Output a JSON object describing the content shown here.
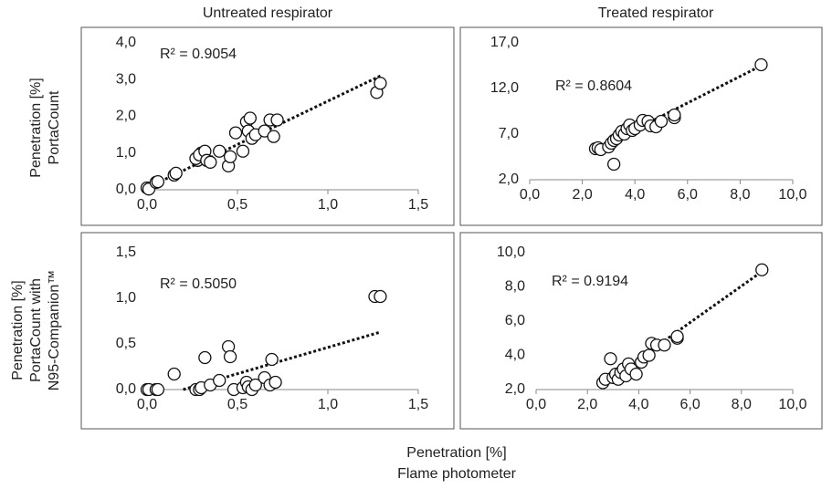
{
  "column_titles": [
    "Untreated respirator",
    "Treated respirator"
  ],
  "row_labels": [
    [
      "Penetration [%]",
      "PortaCount"
    ],
    [
      "Penetration [%]",
      "PortaCount with",
      "N95-Companion™"
    ]
  ],
  "x_label": [
    "Penetration [%]",
    "Flame photometer"
  ],
  "chart_data": [
    {
      "type": "scatter",
      "annotation": "R² = 0.9054",
      "x": [
        0,
        0.01,
        0.05,
        0.06,
        0.15,
        0.16,
        0.28,
        0.27,
        0.3,
        0.29,
        0.32,
        0.33,
        0.35,
        0.4,
        0.45,
        0.46,
        0.49,
        0.53,
        0.55,
        0.57,
        0.56,
        0.58,
        0.6,
        0.65,
        0.68,
        0.7,
        0.72,
        1.27,
        1.29
      ],
      "values": [
        0.05,
        0.02,
        0.2,
        0.22,
        0.4,
        0.45,
        0.8,
        0.85,
        1.0,
        0.95,
        1.05,
        0.8,
        0.75,
        1.05,
        0.65,
        0.9,
        1.55,
        1.05,
        1.85,
        1.95,
        1.6,
        1.4,
        1.5,
        1.6,
        1.9,
        1.45,
        1.9,
        2.65,
        2.9
      ],
      "trendline": {
        "x": [
          0,
          1.29
        ],
        "values": [
          0.05,
          3.1
        ]
      },
      "xlim": [
        0,
        1.5
      ],
      "xticks": [
        {
          "value": 0,
          "label": "0,0"
        },
        {
          "value": 0.5,
          "label": "0,5"
        },
        {
          "value": 1,
          "label": "1,0"
        },
        {
          "value": 1.5,
          "label": "1,5"
        }
      ],
      "ylim": [
        0,
        4
      ],
      "yticks": [
        {
          "value": 0,
          "label": "0,0"
        },
        {
          "value": 1,
          "label": "1,0"
        },
        {
          "value": 2,
          "label": "2,0"
        },
        {
          "value": 3,
          "label": "3,0"
        },
        {
          "value": 4,
          "label": "4,0"
        }
      ]
    },
    {
      "type": "scatter",
      "annotation": "R² = 0.8604",
      "x": [
        2.5,
        2.6,
        2.7,
        3.0,
        3.1,
        3.2,
        3.2,
        3.3,
        3.4,
        3.5,
        3.6,
        3.7,
        3.8,
        3.9,
        4.0,
        4.2,
        4.3,
        4.5,
        4.6,
        4.8,
        5.0,
        5.5,
        5.5,
        8.8
      ],
      "values": [
        5.4,
        5.5,
        5.3,
        5.6,
        6.0,
        3.7,
        6.3,
        6.5,
        6.9,
        7.3,
        7.0,
        7.6,
        8.0,
        7.4,
        7.6,
        8.0,
        8.5,
        8.4,
        7.9,
        7.8,
        8.4,
        8.8,
        9.1,
        14.6
      ],
      "trendline": {
        "x": [
          2.5,
          8.8
        ],
        "values": [
          5.3,
          14.5
        ]
      },
      "xlim": [
        0,
        10
      ],
      "xticks": [
        {
          "value": 0,
          "label": "0,0"
        },
        {
          "value": 2,
          "label": "2,0"
        },
        {
          "value": 4,
          "label": "4,0"
        },
        {
          "value": 6,
          "label": "6,0"
        },
        {
          "value": 8,
          "label": "8,0"
        },
        {
          "value": 10,
          "label": "10,0"
        }
      ],
      "ylim": [
        2,
        17
      ],
      "yticks": [
        {
          "value": 2,
          "label": "2,0"
        },
        {
          "value": 7,
          "label": "7,0"
        },
        {
          "value": 12,
          "label": "12,0"
        },
        {
          "value": 17,
          "label": "17,0"
        }
      ]
    },
    {
      "type": "scatter",
      "annotation": "R² = 0.5050",
      "x": [
        0,
        0.01,
        0.05,
        0.06,
        0.15,
        0.27,
        0.29,
        0.3,
        0.32,
        0.35,
        0.4,
        0.45,
        0.46,
        0.48,
        0.53,
        0.55,
        0.56,
        0.58,
        0.6,
        0.65,
        0.68,
        0.69,
        0.71,
        1.26,
        1.29
      ],
      "values": [
        0,
        0,
        0,
        0,
        0.17,
        0,
        0,
        0.02,
        0.35,
        0.05,
        0.1,
        0.47,
        0.36,
        0,
        0.02,
        0.08,
        0.03,
        0,
        0.05,
        0.13,
        0.05,
        0.33,
        0.08,
        1.02,
        1.02
      ],
      "trendline": {
        "x": [
          0.2,
          1.29
        ],
        "values": [
          0,
          0.63
        ]
      },
      "xlim": [
        0,
        1.5
      ],
      "xticks": [
        {
          "value": 0,
          "label": "0,0"
        },
        {
          "value": 0.5,
          "label": "0,5"
        },
        {
          "value": 1,
          "label": "1,0"
        },
        {
          "value": 1.5,
          "label": "1,5"
        }
      ],
      "ylim": [
        0,
        1.5
      ],
      "yticks": [
        {
          "value": 0,
          "label": "0,0"
        },
        {
          "value": 0.5,
          "label": "0,5"
        },
        {
          "value": 1,
          "label": "1,0"
        },
        {
          "value": 1.5,
          "label": "1,5"
        }
      ]
    },
    {
      "type": "scatter",
      "annotation": "R² = 0.9194",
      "x": [
        2.6,
        2.7,
        2.9,
        3.0,
        3.1,
        3.2,
        3.3,
        3.4,
        3.5,
        3.6,
        3.7,
        3.9,
        4.1,
        4.2,
        4.4,
        4.5,
        4.7,
        5.0,
        5.5,
        5.5,
        8.8
      ],
      "values": [
        2.4,
        2.6,
        3.8,
        2.7,
        2.9,
        2.6,
        3.0,
        3.2,
        2.8,
        3.5,
        3.2,
        2.9,
        3.6,
        3.9,
        4.0,
        4.7,
        4.6,
        4.6,
        5.0,
        5.1,
        9.0
      ],
      "trendline": {
        "x": [
          2.6,
          8.8
        ],
        "values": [
          2.3,
          8.9
        ]
      },
      "xlim": [
        0,
        10
      ],
      "xticks": [
        {
          "value": 0,
          "label": "0,0"
        },
        {
          "value": 2,
          "label": "2,0"
        },
        {
          "value": 4,
          "label": "4,0"
        },
        {
          "value": 6,
          "label": "6,0"
        },
        {
          "value": 8,
          "label": "8,0"
        },
        {
          "value": 10,
          "label": "10,0"
        }
      ],
      "ylim": [
        2,
        10
      ],
      "yticks": [
        {
          "value": 2,
          "label": "2,0"
        },
        {
          "value": 4,
          "label": "4,0"
        },
        {
          "value": 6,
          "label": "6,0"
        },
        {
          "value": 8,
          "label": "8,0"
        },
        {
          "value": 10,
          "label": "10,0"
        }
      ]
    }
  ]
}
